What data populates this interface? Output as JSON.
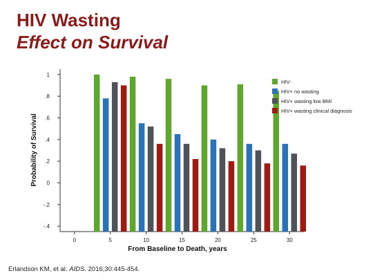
{
  "slide": {
    "title_line1": "HIV Wasting",
    "title_line2": "Effect on Survival",
    "citation": {
      "authors": "Erlandson KM, et al. ",
      "journal": "AIDS",
      "details": ". 2016;30:445-454."
    }
  },
  "colors": {
    "title": "#8b1a1a",
    "hiv_neg": "#5ea62e",
    "no_wasting": "#2a73b8",
    "low_bmi": "#4d5358",
    "clinical": "#9e1b12"
  },
  "chart_data": {
    "type": "bar",
    "xlabel": "From Baseline to Death, years",
    "ylabel": "Probability of Survival",
    "x_tick_labels": [
      "0",
      "5",
      "10",
      "15",
      "20",
      "25",
      "30"
    ],
    "x_ticks": [
      0,
      5,
      10,
      15,
      20,
      25,
      30
    ],
    "x_range": [
      -2,
      32
    ],
    "y_tick_labels": [
      "1",
      ".8",
      ".6",
      ".4",
      ".2",
      "0",
      "-.2",
      "-.4"
    ],
    "y_ticks": [
      1,
      0.8,
      0.6,
      0.4,
      0.2,
      0,
      -0.2,
      -0.4
    ],
    "ylim": [
      -0.45,
      1.05
    ],
    "categories": [
      5,
      10,
      15,
      20,
      25,
      30
    ],
    "series": [
      {
        "name": "HIV-",
        "color": "#5ea62e",
        "values": [
          1.0,
          0.98,
          0.96,
          0.9,
          0.91,
          0.85
        ]
      },
      {
        "name": "HIV+ no wasting",
        "color": "#2a73b8",
        "values": [
          0.78,
          0.55,
          0.45,
          0.4,
          0.36,
          0.36
        ]
      },
      {
        "name": "HIV+ wasting low BMI",
        "color": "#4d5358",
        "values": [
          0.93,
          0.52,
          0.36,
          0.32,
          0.3,
          0.27
        ]
      },
      {
        "name": "HIV+ wasting clinical diagnosis",
        "color": "#9e1b12",
        "values": [
          0.9,
          0.36,
          0.22,
          0.2,
          0.18,
          0.16
        ]
      }
    ],
    "grid": false,
    "legend_position": "top-right"
  }
}
